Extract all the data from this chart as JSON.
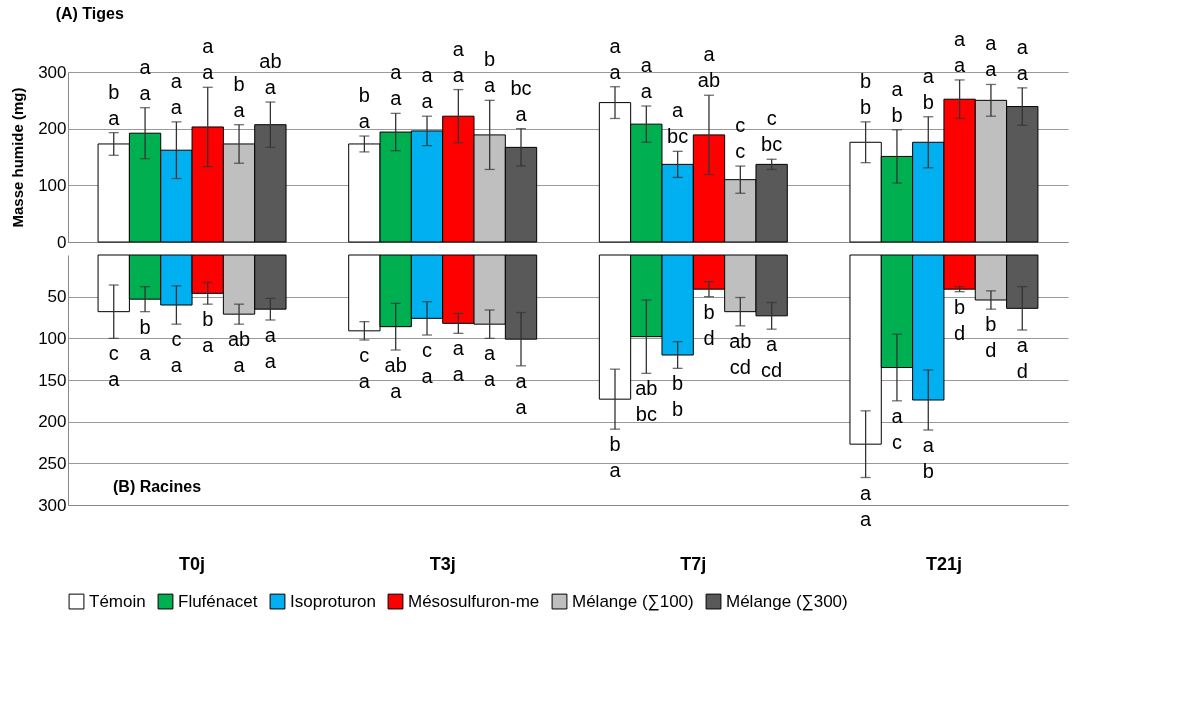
{
  "chart_data": [
    {
      "type": "bar",
      "title": "(A)  Tiges",
      "ylabel": "Masse humide (mg)",
      "ylim": [
        0,
        300
      ],
      "yticks": [
        0,
        100,
        200,
        300
      ],
      "grid": "y",
      "tick_labels": "y",
      "series": [
        {
          "color": "#ffffff",
          "values": [
            173,
            173,
            246,
            176
          ],
          "errors": [
            20,
            14,
            28,
            36
          ],
          "value_labels": [
            "b\na",
            "b\na",
            "a\na",
            "b\nb"
          ]
        },
        {
          "color": "#00b050",
          "values": [
            192,
            194,
            208,
            151
          ],
          "errors": [
            45,
            33,
            32,
            47
          ],
          "value_labels": [
            "a\na",
            "a\na",
            "a\na",
            "a\nb"
          ]
        },
        {
          "color": "#00b0f0",
          "values": [
            162,
            196,
            137,
            176
          ],
          "errors": [
            50,
            26,
            23,
            45
          ],
          "value_labels": [
            "a\na",
            "a\na",
            "a\nbc",
            "a\nb"
          ]
        },
        {
          "color": "#ff0000",
          "values": [
            203,
            222,
            189,
            252
          ],
          "errors": [
            70,
            47,
            70,
            34
          ],
          "value_labels": [
            "a\na",
            "a\na",
            "a\nab",
            "a\na"
          ]
        },
        {
          "color": "#bfbfbf",
          "values": [
            173,
            189,
            110,
            250
          ],
          "errors": [
            34,
            61,
            24,
            28
          ],
          "value_labels": [
            "b\na",
            "b\na",
            "c\nc",
            "a\na"
          ]
        },
        {
          "color": "#595959",
          "values": [
            207,
            167,
            137,
            239
          ],
          "errors": [
            40,
            33,
            9,
            33
          ],
          "value_labels": [
            "ab\na",
            "bc\na",
            "c\nbc",
            "a\na"
          ]
        }
      ]
    },
    {
      "type": "bar",
      "title": "(B)  Racines",
      "categories": [
        "T0j",
        "T3j",
        "T7j",
        "T21j"
      ],
      "ylim": [
        300,
        0
      ],
      "yticks": [
        50,
        100,
        150,
        200,
        250,
        300
      ],
      "grid": "y",
      "legend": "bottom",
      "series": [
        {
          "name": "Témoin",
          "color": "#ffffff",
          "values": [
            68,
            91,
            173,
            227
          ],
          "errors": [
            32,
            11,
            36,
            40
          ],
          "value_labels": [
            "c\na",
            "c\na",
            "b\na",
            "a\na"
          ]
        },
        {
          "name": "Flufénacet",
          "color": "#00b050",
          "values": [
            53,
            86,
            98,
            135
          ],
          "errors": [
            15,
            28,
            44,
            40
          ],
          "value_labels": [
            "b\na",
            "ab\na",
            "ab\nbc",
            "a\nc"
          ]
        },
        {
          "name": "Isoproturon",
          "color": "#00b0f0",
          "values": [
            60,
            76,
            120,
            174
          ],
          "errors": [
            23,
            20,
            16,
            36
          ],
          "value_labels": [
            "c\na",
            "c\na",
            "b\nb",
            "a\nb"
          ]
        },
        {
          "name": "Mésosulfuron-me",
          "color": "#ff0000",
          "values": [
            46,
            82,
            41,
            41
          ],
          "errors": [
            13,
            12,
            9,
            3
          ],
          "value_labels": [
            "b\na",
            "a\na",
            "b\nd",
            "b\nd"
          ]
        },
        {
          "name": "Mélange (∑100)",
          "color": "#bfbfbf",
          "values": [
            71,
            83,
            68,
            54
          ],
          "errors": [
            12,
            17,
            17,
            11
          ],
          "value_labels": [
            "ab\na",
            "a\na",
            "ab\ncd",
            "b\nd"
          ]
        },
        {
          "name": "Mélange (∑300)",
          "color": "#595959",
          "values": [
            65,
            101,
            73,
            64
          ],
          "errors": [
            13,
            32,
            16,
            26
          ],
          "value_labels": [
            "a\na",
            "a\na",
            "a\ncd",
            "a\nd"
          ]
        }
      ]
    }
  ]
}
